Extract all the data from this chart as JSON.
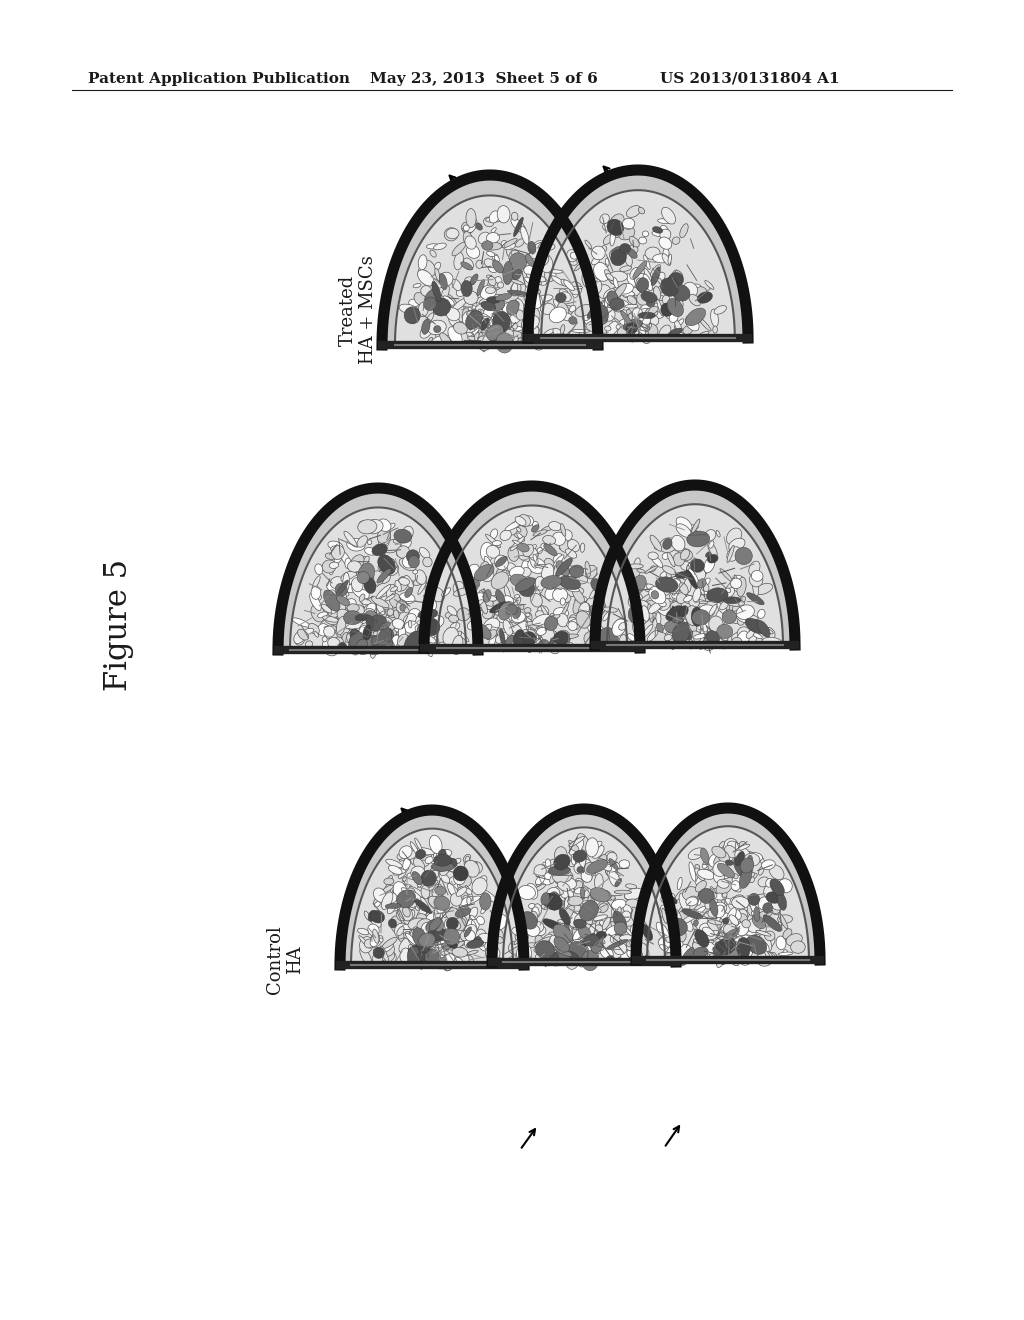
{
  "header_left": "Patent Application Publication",
  "header_center": "May 23, 2013  Sheet 5 of 6",
  "header_right": "US 2013/0131804 A1",
  "figure_label": "Figure 5",
  "group1_label": "Treated\nHA + MSCs",
  "group2_label": "Control\nHA",
  "background_color": "#ffffff",
  "header_fontsize": 11,
  "figure_label_fontsize": 22,
  "group_label_fontsize": 13,
  "page_width": 10.24,
  "page_height": 13.2,
  "dpi": 100
}
